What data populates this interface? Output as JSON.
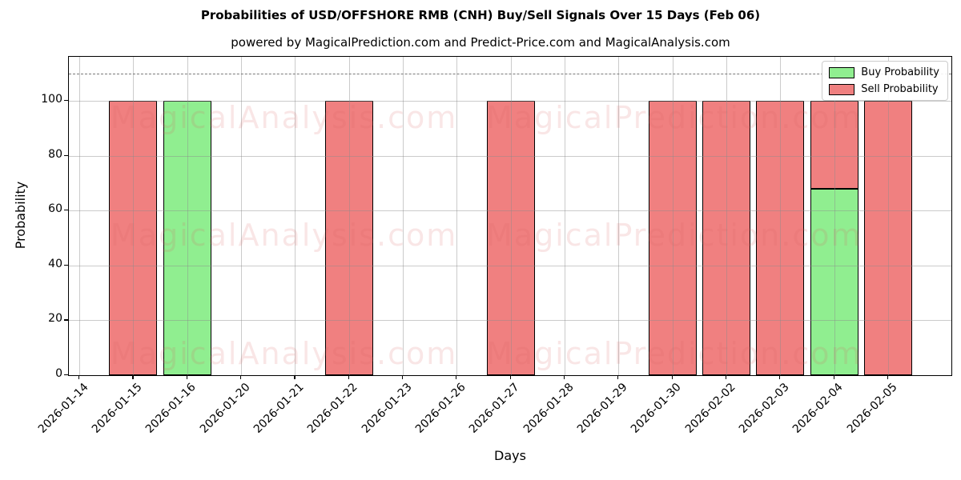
{
  "title": "Probabilities of USD/OFFSHORE RMB (CNH) Buy/Sell Signals Over 15 Days (Feb 06)",
  "subtitle": "powered by MagicalPrediction.com and Predict-Price.com and MagicalAnalysis.com",
  "legend": [
    {
      "label": "Buy Probability",
      "color": "#90EE90"
    },
    {
      "label": "Sell Probability",
      "color": "#F08080"
    }
  ],
  "watermarks": {
    "left_text": "MagicalAnalysis.com",
    "right_text": "MagicalPrediction.com",
    "color": "rgba(220,100,100,0.16)"
  },
  "chart_data": {
    "type": "bar",
    "stacked": true,
    "title": "Probabilities of USD/OFFSHORE RMB (CNH) Buy/Sell Signals Over 15 Days (Feb 06)",
    "xlabel": "Days",
    "ylabel": "Probability",
    "ylim": [
      0,
      116
    ],
    "yticks": [
      0,
      20,
      40,
      60,
      80,
      100
    ],
    "grid": true,
    "legend_position": "upper right",
    "dashed_line_y": 110,
    "dashed_line_color": "#787878",
    "categories": [
      "2026-01-14",
      "2026-01-15",
      "2026-01-16",
      "2026-01-20",
      "2026-01-21",
      "2026-01-22",
      "2026-01-23",
      "2026-01-26",
      "2026-01-27",
      "2026-01-28",
      "2026-01-29",
      "2026-01-30",
      "2026-02-02",
      "2026-02-03",
      "2026-02-04",
      "2026-02-05"
    ],
    "series": [
      {
        "name": "Buy Probability",
        "color": "#90EE90",
        "values": [
          0,
          0,
          100,
          0,
          0,
          0,
          0,
          0,
          0,
          0,
          0,
          0,
          0,
          0,
          68,
          0
        ]
      },
      {
        "name": "Sell Probability",
        "color": "#F08080",
        "values": [
          0,
          100,
          0,
          0,
          0,
          100,
          0,
          0,
          100,
          0,
          0,
          100,
          100,
          100,
          32,
          100
        ]
      }
    ]
  }
}
